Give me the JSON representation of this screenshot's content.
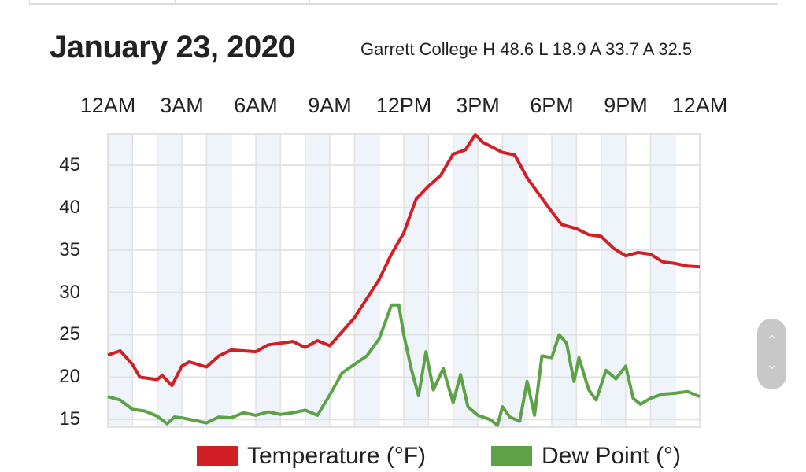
{
  "header": {
    "title": "January 23, 2020",
    "subtitle": "Garrett College H 48.6 L 18.9 A 33.7 A 32.5"
  },
  "colors": {
    "temperature": "#d21f26",
    "dew_point": "#5da247",
    "band": "#eef4fa",
    "grid": "#e2e2e2"
  },
  "scroll": {
    "up_icon": "chevron-up-icon",
    "down_icon": "chevron-down-icon"
  },
  "chart_data": {
    "type": "line",
    "title": "January 23, 2020",
    "x_ticks": [
      "12AM",
      "3AM",
      "6AM",
      "9AM",
      "12PM",
      "3PM",
      "6PM",
      "9PM",
      "12AM"
    ],
    "x_range_hours": [
      0,
      24
    ],
    "y_ticks": [
      "45",
      "40",
      "35",
      "30",
      "25",
      "20",
      "15"
    ],
    "ylim": [
      14.1,
      48.7
    ],
    "grid": true,
    "legend": "bottom",
    "series": [
      {
        "name": "Temperature (°F)",
        "color": "#d21f26",
        "x": [
          0,
          0.5,
          1,
          1.3,
          2,
          2.2,
          2.6,
          3,
          3.3,
          4,
          4.5,
          5,
          6,
          6.5,
          7,
          7.5,
          8,
          8.5,
          9,
          10,
          11,
          11.5,
          12,
          12.5,
          13,
          13.5,
          14,
          14.5,
          14.9,
          15.2,
          16,
          16.5,
          17,
          17.5,
          18,
          18.4,
          19,
          19.5,
          20,
          20.5,
          21,
          21.5,
          22,
          22.5,
          23,
          23.5,
          24
        ],
        "values": [
          22.6,
          23.1,
          21.5,
          20.0,
          19.7,
          20.2,
          19.0,
          21.3,
          21.8,
          21.2,
          22.5,
          23.2,
          23.0,
          23.8,
          24.0,
          24.2,
          23.5,
          24.3,
          23.7,
          27,
          31.5,
          34.5,
          37.0,
          41.0,
          42.5,
          43.8,
          46.3,
          46.8,
          48.6,
          47.7,
          46.5,
          46.2,
          43.5,
          41.5,
          39.5,
          38.0,
          37.5,
          36.8,
          36.6,
          35.2,
          34.3,
          34.7,
          34.5,
          33.6,
          33.4,
          33.1,
          33.0
        ]
      },
      {
        "name": "Dew Point (°)",
        "color": "#5da247",
        "x": [
          0,
          0.5,
          1,
          1.5,
          2,
          2.4,
          2.7,
          3,
          4,
          4.5,
          5,
          5.5,
          6,
          6.5,
          7,
          7.5,
          8,
          8.5,
          9,
          9.5,
          10,
          10.5,
          11,
          11.5,
          11.8,
          12,
          12.3,
          12.6,
          12.9,
          13.2,
          13.6,
          14,
          14.3,
          14.6,
          15,
          15.5,
          15.8,
          16,
          16.3,
          16.7,
          17,
          17.3,
          17.6,
          18,
          18.3,
          18.6,
          18.9,
          19.1,
          19.5,
          19.8,
          20.2,
          20.6,
          21,
          21.3,
          21.6,
          22,
          22.5,
          23,
          23.5,
          24
        ],
        "values": [
          17.7,
          17.3,
          16.2,
          16.0,
          15.4,
          14.5,
          15.3,
          15.2,
          14.6,
          15.3,
          15.2,
          15.8,
          15.5,
          15.9,
          15.6,
          15.8,
          16.1,
          15.5,
          17.9,
          20.5,
          21.5,
          22.5,
          24.5,
          28.5,
          28.5,
          25,
          21,
          17.8,
          23,
          18.5,
          21,
          17,
          20.3,
          16.5,
          15.5,
          15,
          14.3,
          16.5,
          15.3,
          14.8,
          19.5,
          15.5,
          22.5,
          22.3,
          25.0,
          24,
          19.5,
          22.3,
          18.5,
          17.3,
          20.8,
          19.8,
          21.3,
          17.5,
          16.8,
          17.5,
          18.0,
          18.1,
          18.3,
          17.7
        ]
      }
    ]
  }
}
